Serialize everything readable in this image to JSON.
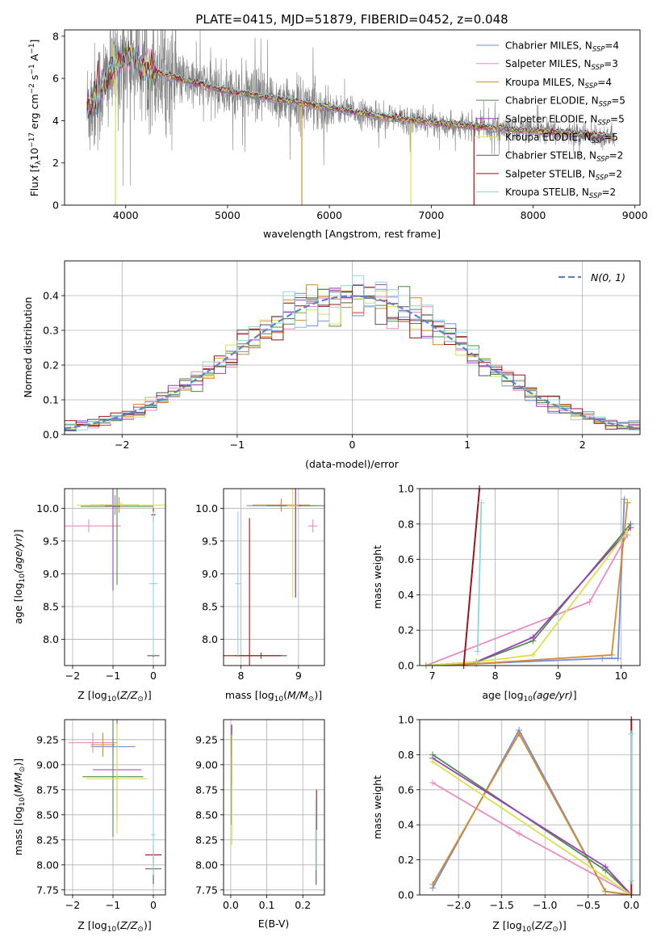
{
  "title": "PLATE=0415, MJD=51879, FIBERID=0452, z=0.048",
  "colors": [
    "#6f8fdc",
    "#e88bc4",
    "#d68b2a",
    "#4c8c4c",
    "#9a3fb5",
    "#d8e24a",
    "#555555",
    "#a10f14",
    "#8fd6d6"
  ],
  "chart_data": [
    {
      "id": "spectrum",
      "type": "line",
      "title": "PLATE=0415, MJD=51879, FIBERID=0452, z=0.048",
      "xlabel": "wavelength [Angstrom, rest frame]",
      "ylabel": "Flux [f_λ 10^-17 erg cm^-2 s^-1 A^-1]",
      "ylabel_parts": {
        "a": "Flux [f",
        "b": "λ",
        "c": "10",
        "d": "−17",
        "e": " erg cm",
        "f": "−2",
        "g": " s",
        "h": "−1",
        "i": " A",
        "j": "−1",
        "k": "]"
      },
      "xlim": [
        3400,
        9050
      ],
      "ylim": [
        0,
        8.3
      ],
      "xticks": [
        4000,
        5000,
        6000,
        7000,
        8000,
        9000
      ],
      "yticks": [
        0,
        2,
        4,
        6,
        8
      ],
      "grid": false,
      "legend_position": "upper-right",
      "legend": [
        {
          "label": "Chabrier MILES, N",
          "sub": "SSP",
          "val": "=4"
        },
        {
          "label": "Salpeter MILES, N",
          "sub": "SSP",
          "val": "=3"
        },
        {
          "label": "Kroupa MILES, N",
          "sub": "SSP",
          "val": "=4"
        },
        {
          "label": "Chabrier ELODIE, N",
          "sub": "SSP",
          "val": "=5"
        },
        {
          "label": "Salpeter ELODIE, N",
          "sub": "SSP",
          "val": "=5"
        },
        {
          "label": "Kroupa ELODIE, N",
          "sub": "SSP",
          "val": "=5"
        },
        {
          "label": "Chabrier STELIB, N",
          "sub": "SSP",
          "val": "=2"
        },
        {
          "label": "Salpeter STELIB, N",
          "sub": "SSP",
          "val": "=2"
        },
        {
          "label": "Kroupa STELIB, N",
          "sub": "SSP",
          "val": "=2"
        }
      ],
      "continuum": [
        [
          3620,
          4.5
        ],
        [
          3750,
          5.4
        ],
        [
          3900,
          6.6
        ],
        [
          4000,
          7.0
        ],
        [
          4150,
          6.8
        ],
        [
          4300,
          6.3
        ],
        [
          4500,
          6.0
        ],
        [
          5000,
          5.4
        ],
        [
          5500,
          5.0
        ],
        [
          6000,
          4.6
        ],
        [
          6500,
          4.2
        ],
        [
          7000,
          3.9
        ],
        [
          7500,
          3.7
        ],
        [
          8000,
          3.5
        ],
        [
          8500,
          3.35
        ],
        [
          8800,
          3.2
        ]
      ]
    },
    {
      "id": "residuals",
      "type": "histogram",
      "xlabel": "(data-model)/error",
      "ylabel": "Normed distribution",
      "xlim": [
        -2.5,
        2.5
      ],
      "ylim": [
        0,
        0.5
      ],
      "xticks": [
        -2,
        -1,
        0,
        1,
        2
      ],
      "yticks": [
        0,
        0.1,
        0.2,
        0.3,
        0.4
      ],
      "grid": true,
      "bin_width": 0.1,
      "legend": [
        {
          "label": "N(0, 1)"
        }
      ],
      "legend_position": "upper-right"
    },
    {
      "id": "age-vs-z",
      "type": "errorbar",
      "xlabel": "Z [log10(Z/Z⊙)]",
      "ylabel": "age  [log10(age/yr)]",
      "xlim": [
        -2.2,
        0.3
      ],
      "ylim": [
        7.6,
        10.3
      ],
      "xticks": [
        -2,
        -1,
        0
      ],
      "yticks": [
        8.0,
        8.5,
        9.0,
        9.5,
        10.0
      ],
      "grid": true,
      "points": [
        {
          "c": 0,
          "x": -0.95,
          "y": 10.05,
          "xerr": 0.6,
          "yerr": 0.15
        },
        {
          "c": 1,
          "x": -1.6,
          "y": 9.73,
          "xerr": 0.8,
          "yerr": 0.1
        },
        {
          "c": 2,
          "x": -0.85,
          "y": 10.05,
          "xerr": 0.5,
          "yerr": 0.12
        },
        {
          "c": 3,
          "x": -0.9,
          "y": 10.03,
          "xerr": 0.9,
          "yerr": 1.2
        },
        {
          "c": 4,
          "x": -1.0,
          "y": 10.04,
          "xerr": 0.2,
          "yerr": 1.3
        },
        {
          "c": 5,
          "x": -0.8,
          "y": 10.05,
          "xerr": 1.1,
          "yerr": 0.05
        },
        {
          "c": 6,
          "x": 0.0,
          "y": 7.75,
          "xerr": 0.15,
          "yerr": 0.02
        },
        {
          "c": 7,
          "x": 0.0,
          "y": 9.9,
          "xerr": 0.05,
          "yerr": 0.1
        },
        {
          "c": 8,
          "x": 0.0,
          "y": 8.85,
          "xerr": 0.1,
          "yerr": 1.1
        }
      ]
    },
    {
      "id": "age-vs-mass",
      "type": "errorbar",
      "xlabel": "mass [log10(M/M⊙)]",
      "xlim": [
        7.7,
        9.45
      ],
      "ylim": [
        7.6,
        10.3
      ],
      "xticks": [
        8,
        9
      ],
      "yticks": [
        8.0,
        8.5,
        9.0,
        9.5,
        10.0
      ],
      "grid": true,
      "points": [
        {
          "c": 0,
          "x": 8.7,
          "y": 10.04,
          "xerr": 0.6,
          "yerr": 0.05
        },
        {
          "c": 1,
          "x": 9.25,
          "y": 9.73,
          "xerr": 0.08,
          "yerr": 0.1
        },
        {
          "c": 2,
          "x": 8.7,
          "y": 10.05,
          "xerr": 0.5,
          "yerr": 0.1
        },
        {
          "c": 3,
          "x": 8.95,
          "y": 10.04,
          "xerr": 0.5,
          "yerr": 1.4
        },
        {
          "c": 4,
          "x": 8.95,
          "y": 10.04,
          "xerr": 0.1,
          "yerr": 1.4
        },
        {
          "c": 5,
          "x": 8.9,
          "y": 10.04,
          "xerr": 0.1,
          "yerr": 1.4
        },
        {
          "c": 6,
          "x": 8.35,
          "y": 7.75,
          "xerr": 0.45,
          "yerr": 0.05
        },
        {
          "c": 7,
          "x": 8.15,
          "y": 7.75,
          "xerr": 0.55,
          "yerr": 2.1
        },
        {
          "c": 8,
          "x": 7.95,
          "y": 8.85,
          "xerr": 0.05,
          "yerr": 1.1
        }
      ]
    },
    {
      "id": "mass-weight-vs-age",
      "type": "line",
      "xlabel": "age  [log10(age/yr)]",
      "ylabel": "mass weight",
      "xlim": [
        6.8,
        10.3
      ],
      "ylim": [
        0,
        1.0
      ],
      "xticks": [
        7,
        8,
        9,
        10
      ],
      "yticks": [
        0,
        0.2,
        0.4,
        0.6,
        0.8,
        1.0
      ],
      "grid": true,
      "series": [
        {
          "c": 0,
          "x": [
            6.9,
            7.7,
            9.7,
            9.95,
            10.05
          ],
          "y": [
            0.0,
            0.01,
            0.04,
            0.04,
            0.94
          ]
        },
        {
          "c": 1,
          "x": [
            6.9,
            9.5,
            10.1
          ],
          "y": [
            0.0,
            0.36,
            0.74
          ]
        },
        {
          "c": 2,
          "x": [
            6.9,
            7.7,
            9.85,
            10.1
          ],
          "y": [
            0.0,
            0.01,
            0.06,
            0.92
          ]
        },
        {
          "c": 3,
          "x": [
            6.9,
            7.7,
            8.6,
            10.15
          ],
          "y": [
            0.0,
            0.02,
            0.14,
            0.8
          ]
        },
        {
          "c": 4,
          "x": [
            6.9,
            7.7,
            8.6,
            10.15
          ],
          "y": [
            0.0,
            0.02,
            0.16,
            0.78
          ]
        },
        {
          "c": 5,
          "x": [
            6.9,
            7.7,
            8.6,
            10.1
          ],
          "y": [
            0.0,
            0.02,
            0.06,
            0.76
          ]
        },
        {
          "c": 6,
          "x": [
            7.5,
            7.75
          ],
          "y": [
            0.0,
            1.0
          ]
        },
        {
          "c": 7,
          "x": [
            7.5,
            7.75
          ],
          "y": [
            0.0,
            1.0
          ]
        },
        {
          "c": 8,
          "x": [
            7.72,
            7.78
          ],
          "y": [
            0.08,
            0.92
          ]
        }
      ]
    },
    {
      "id": "mass-vs-z",
      "type": "errorbar",
      "xlabel": "Z [log10(Z/Z⊙)]",
      "ylabel": "mass [log10(M/M⊙)]",
      "xlim": [
        -2.2,
        0.3
      ],
      "ylim": [
        7.7,
        9.45
      ],
      "xticks": [
        -2,
        -1,
        0
      ],
      "yticks": [
        7.75,
        8.0,
        8.25,
        8.5,
        8.75,
        9.0,
        9.25
      ],
      "grid": true,
      "points": [
        {
          "c": 0,
          "x": -1.0,
          "y": 9.18,
          "xerr": 0.55,
          "yerr": 0.1
        },
        {
          "c": 1,
          "x": -1.5,
          "y": 9.22,
          "xerr": 0.6,
          "yerr": 0.1
        },
        {
          "c": 2,
          "x": -1.25,
          "y": 9.2,
          "xerr": 0.3,
          "yerr": 0.12
        },
        {
          "c": 3,
          "x": -1.0,
          "y": 8.88,
          "xerr": 0.75,
          "yerr": 0.6
        },
        {
          "c": 4,
          "x": -0.9,
          "y": 8.95,
          "xerr": 0.6,
          "yerr": 0.5
        },
        {
          "c": 5,
          "x": -0.9,
          "y": 8.86,
          "xerr": 0.75,
          "yerr": 0.55
        },
        {
          "c": 6,
          "x": 0.0,
          "y": 7.96,
          "xerr": 0.2,
          "yerr": 0.15
        },
        {
          "c": 7,
          "x": 0.0,
          "y": 8.1,
          "xerr": 0.2,
          "yerr": 0.1
        },
        {
          "c": 8,
          "x": 0.0,
          "y": 8.3,
          "xerr": 0.05,
          "yerr": 0.4
        }
      ]
    },
    {
      "id": "mass-vs-ebv",
      "type": "errorbar",
      "xlabel": "E(B-V)",
      "xlim": [
        -0.02,
        0.26
      ],
      "ylim": [
        7.7,
        9.45
      ],
      "xticks": [
        0.0,
        0.1,
        0.2
      ],
      "yticks": [
        7.75,
        8.0,
        8.25,
        8.5,
        8.75,
        9.0,
        9.25
      ],
      "grid": true,
      "points": [
        {
          "c": 0,
          "x": 0.002,
          "y": 9.2,
          "xerr": 0.0,
          "yerr": 0.1
        },
        {
          "c": 1,
          "x": 0.002,
          "y": 9.22,
          "xerr": 0.0,
          "yerr": 0.05
        },
        {
          "c": 2,
          "x": 0.002,
          "y": 9.2,
          "xerr": 0.0,
          "yerr": 0.1
        },
        {
          "c": 3,
          "x": 0.002,
          "y": 8.9,
          "xerr": 0.0,
          "yerr": 0.5
        },
        {
          "c": 4,
          "x": 0.003,
          "y": 9.1,
          "xerr": 0.0,
          "yerr": 0.3
        },
        {
          "c": 5,
          "x": 0.003,
          "y": 8.75,
          "xerr": 0.0,
          "yerr": 0.55
        },
        {
          "c": 6,
          "x": 0.237,
          "y": 8.15,
          "xerr": 0.0,
          "yerr": 0.35
        },
        {
          "c": 7,
          "x": 0.238,
          "y": 8.55,
          "xerr": 0.0,
          "yerr": 0.2
        },
        {
          "c": 8,
          "x": 0.236,
          "y": 8.3,
          "xerr": 0.0,
          "yerr": 0.35
        }
      ]
    },
    {
      "id": "mass-weight-vs-z",
      "type": "line",
      "xlabel": "Z [log10(Z/Z⊙)]",
      "ylabel": "mass weight",
      "xlim": [
        -2.45,
        0.1
      ],
      "ylim": [
        0,
        1.0
      ],
      "xticks": [
        -2.0,
        -1.5,
        -1.0,
        -0.5,
        0.0
      ],
      "yticks": [
        0,
        0.2,
        0.4,
        0.6,
        0.8,
        1.0
      ],
      "grid": true,
      "series": [
        {
          "c": 0,
          "x": [
            -2.3,
            -1.3,
            -0.3,
            0.0
          ],
          "y": [
            0.04,
            0.94,
            0.02,
            0.0
          ]
        },
        {
          "c": 1,
          "x": [
            -2.3,
            -1.3,
            0.0
          ],
          "y": [
            0.64,
            0.35,
            0.0
          ]
        },
        {
          "c": 2,
          "x": [
            -2.3,
            -1.3,
            -0.3,
            0.0
          ],
          "y": [
            0.06,
            0.92,
            0.02,
            0.0
          ]
        },
        {
          "c": 3,
          "x": [
            -2.3,
            -0.3,
            0.0
          ],
          "y": [
            0.8,
            0.14,
            0.0
          ]
        },
        {
          "c": 4,
          "x": [
            -2.3,
            -0.3,
            0.0
          ],
          "y": [
            0.78,
            0.16,
            0.0
          ]
        },
        {
          "c": 5,
          "x": [
            -2.3,
            -0.3,
            0.0
          ],
          "y": [
            0.76,
            0.1,
            0.0
          ]
        },
        {
          "c": 6,
          "x": [
            0.0,
            0.0
          ],
          "y": [
            0.0,
            1.0
          ]
        },
        {
          "c": 7,
          "x": [
            0.0,
            0.0
          ],
          "y": [
            0.0,
            1.0
          ]
        },
        {
          "c": 8,
          "x": [
            0.0,
            0.0
          ],
          "y": [
            0.08,
            0.92
          ]
        }
      ]
    }
  ]
}
